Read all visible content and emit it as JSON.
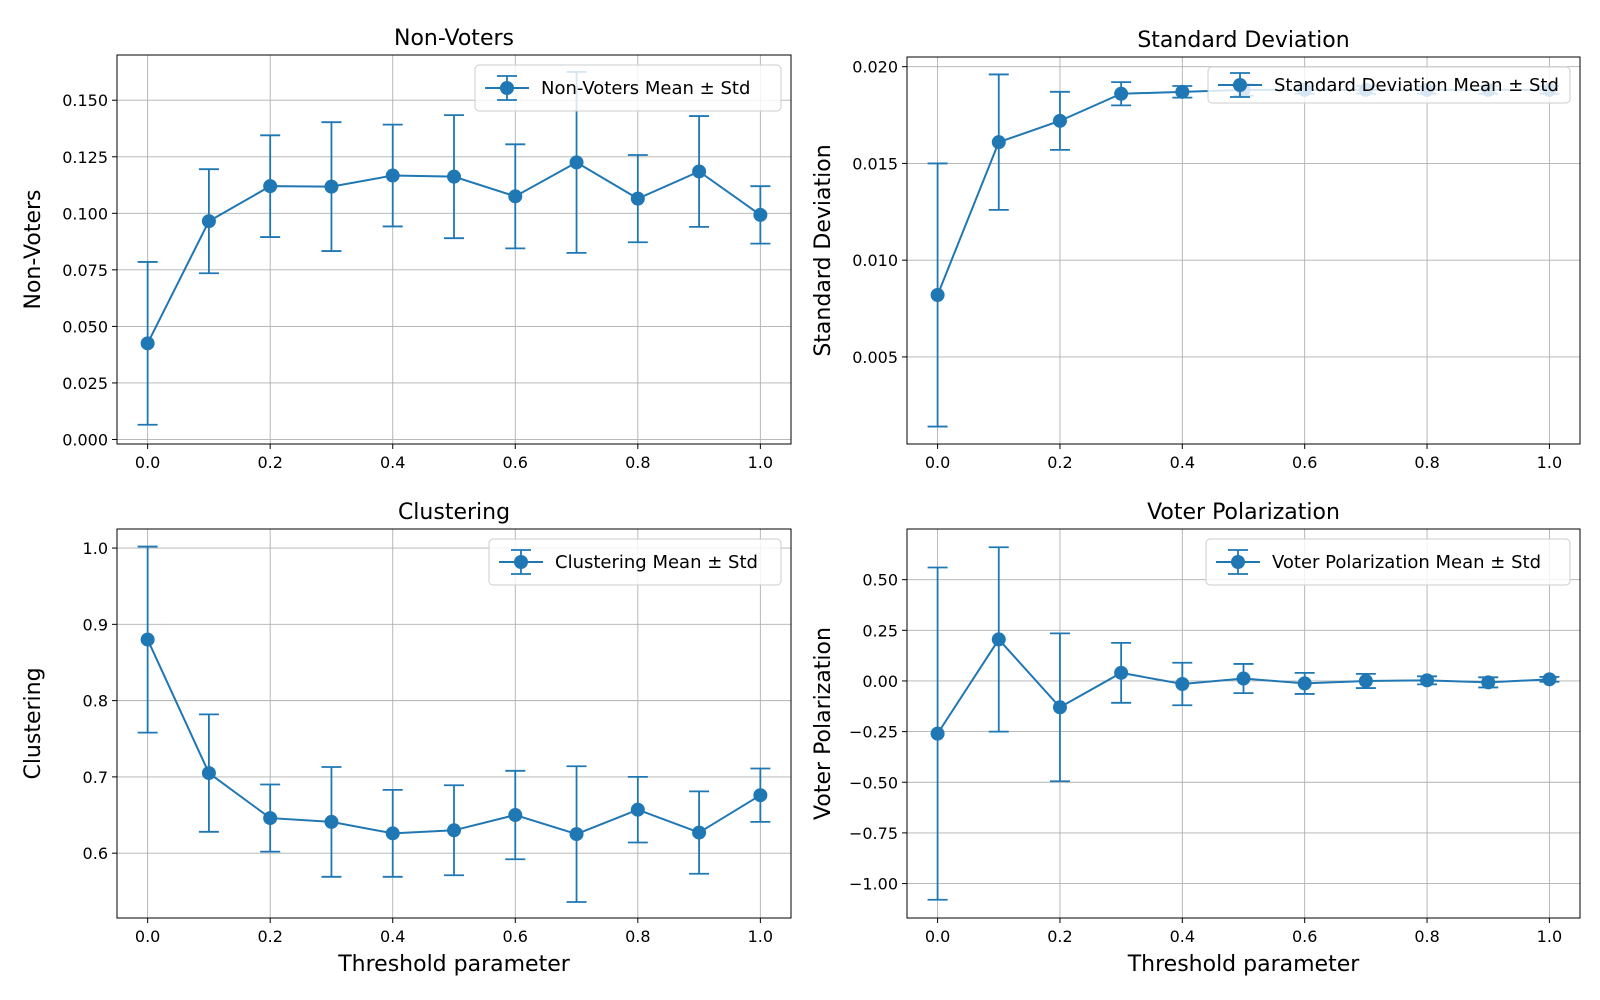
{
  "colors": {
    "series": "#1f77b4",
    "grid": "#b0b0b0"
  },
  "chart_data": [
    {
      "type": "line",
      "title": "Non-Voters",
      "xlabel": "",
      "ylabel": "Non-Voters",
      "x": [
        0.0,
        0.1,
        0.2,
        0.3,
        0.4,
        0.5,
        0.6,
        0.7,
        0.8,
        0.9,
        1.0
      ],
      "xlim": [
        -0.05,
        1.05
      ],
      "ylim": [
        -0.002,
        0.17
      ],
      "xticks": [
        0.0,
        0.2,
        0.4,
        0.6,
        0.8,
        1.0
      ],
      "xtick_labels": [
        "0.0",
        "0.2",
        "0.4",
        "0.6",
        "0.8",
        "1.0"
      ],
      "yticks": [
        0.0,
        0.025,
        0.05,
        0.075,
        0.1,
        0.125,
        0.15
      ],
      "ytick_labels": [
        "0.000",
        "0.025",
        "0.050",
        "0.075",
        "0.100",
        "0.125",
        "0.150"
      ],
      "grid": true,
      "legend_position": "top-right",
      "series": [
        {
          "name": "Non-Voters Mean ± Std",
          "values": [
            0.0425,
            0.0965,
            0.112,
            0.1118,
            0.1167,
            0.1162,
            0.1075,
            0.1225,
            0.1065,
            0.1185,
            0.0993
          ],
          "std": [
            0.036,
            0.023,
            0.0225,
            0.0285,
            0.0225,
            0.0272,
            0.023,
            0.04,
            0.0193,
            0.0245,
            0.0127
          ]
        }
      ]
    },
    {
      "type": "line",
      "title": "Standard Deviation",
      "xlabel": "",
      "ylabel": "Standard Deviation",
      "x": [
        0.0,
        0.1,
        0.2,
        0.3,
        0.4,
        0.5,
        0.6,
        0.7,
        0.8,
        0.9,
        1.0
      ],
      "xlim": [
        -0.05,
        1.05
      ],
      "ylim": [
        0.0005,
        0.0205
      ],
      "xticks": [
        0.0,
        0.2,
        0.4,
        0.6,
        0.8,
        1.0
      ],
      "xtick_labels": [
        "0.0",
        "0.2",
        "0.4",
        "0.6",
        "0.8",
        "1.0"
      ],
      "yticks": [
        0.005,
        0.01,
        0.015,
        0.02
      ],
      "ytick_labels": [
        "0.005",
        "0.010",
        "0.015",
        "0.020"
      ],
      "grid": true,
      "legend_position": "top-right",
      "series": [
        {
          "name": "Standard Deviation Mean ± Std",
          "values": [
            0.0082,
            0.0161,
            0.0172,
            0.0186,
            0.0187,
            0.0188,
            0.0188,
            0.0188,
            0.0188,
            0.0188,
            0.0188
          ],
          "std": [
            0.0068,
            0.0035,
            0.0015,
            0.0006,
            0.0003,
            0.0003,
            0.0002,
            0.0002,
            0.0002,
            0.0002,
            0.0002
          ]
        }
      ]
    },
    {
      "type": "line",
      "title": "Clustering",
      "xlabel": "Threshold parameter",
      "ylabel": "Clustering",
      "x": [
        0.0,
        0.1,
        0.2,
        0.3,
        0.4,
        0.5,
        0.6,
        0.7,
        0.8,
        0.9,
        1.0
      ],
      "xlim": [
        -0.05,
        1.05
      ],
      "ylim": [
        0.515,
        1.025
      ],
      "xticks": [
        0.0,
        0.2,
        0.4,
        0.6,
        0.8,
        1.0
      ],
      "xtick_labels": [
        "0.0",
        "0.2",
        "0.4",
        "0.6",
        "0.8",
        "1.0"
      ],
      "yticks": [
        0.6,
        0.7,
        0.8,
        0.9,
        1.0
      ],
      "ytick_labels": [
        "0.6",
        "0.7",
        "0.8",
        "0.9",
        "1.0"
      ],
      "grid": true,
      "legend_position": "top-right",
      "series": [
        {
          "name": "Clustering Mean ± Std",
          "values": [
            0.88,
            0.705,
            0.646,
            0.641,
            0.626,
            0.63,
            0.65,
            0.625,
            0.657,
            0.627,
            0.676
          ],
          "std": [
            0.122,
            0.077,
            0.044,
            0.072,
            0.057,
            0.059,
            0.058,
            0.089,
            0.043,
            0.054,
            0.035
          ]
        }
      ]
    },
    {
      "type": "line",
      "title": "Voter Polarization",
      "xlabel": "Threshold parameter",
      "ylabel": "Voter Polarization",
      "x": [
        0.0,
        0.1,
        0.2,
        0.3,
        0.4,
        0.5,
        0.6,
        0.7,
        0.8,
        0.9,
        1.0
      ],
      "xlim": [
        -0.05,
        1.05
      ],
      "ylim": [
        -1.17,
        0.75
      ],
      "xticks": [
        0.0,
        0.2,
        0.4,
        0.6,
        0.8,
        1.0
      ],
      "xtick_labels": [
        "0.0",
        "0.2",
        "0.4",
        "0.6",
        "0.8",
        "1.0"
      ],
      "yticks": [
        -1.0,
        -0.75,
        -0.5,
        -0.25,
        0.0,
        0.25,
        0.5
      ],
      "ytick_labels": [
        "−1.00",
        "−0.75",
        "−0.50",
        "−0.25",
        "0.00",
        "0.25",
        "0.50"
      ],
      "grid": true,
      "legend_position": "top-right",
      "series": [
        {
          "name": "Voter Polarization Mean ± Std",
          "values": [
            -0.26,
            0.205,
            -0.13,
            0.04,
            -0.015,
            0.012,
            -0.012,
            0.0,
            0.003,
            -0.007,
            0.008
          ],
          "std": [
            0.82,
            0.455,
            0.365,
            0.148,
            0.105,
            0.072,
            0.052,
            0.035,
            0.02,
            0.025,
            0.012
          ]
        }
      ]
    }
  ]
}
